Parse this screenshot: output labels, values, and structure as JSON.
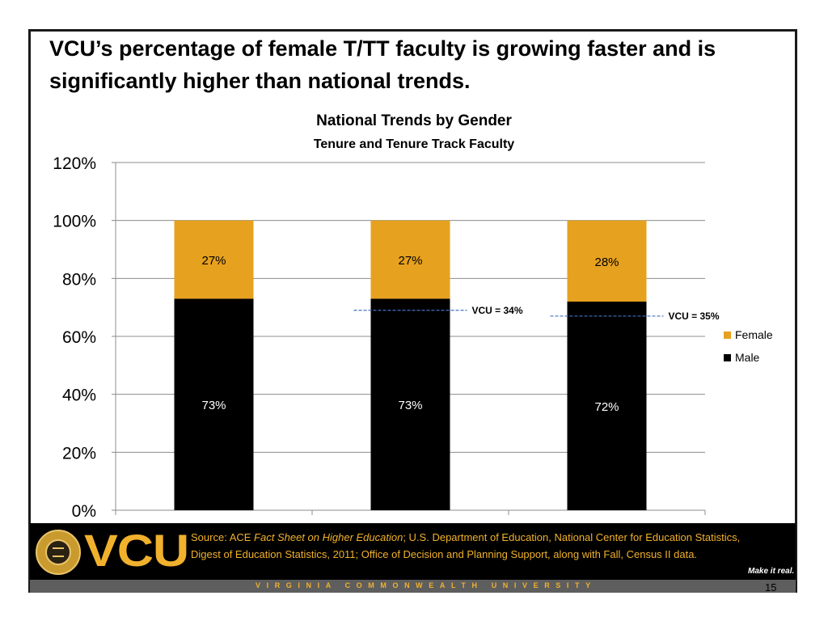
{
  "slide": {
    "headline": "VCU’s percentage of female T/TT faculty is growing faster and is significantly higher than national trends.",
    "page_number": "15"
  },
  "footer": {
    "logo": "VCU",
    "source_prefix": "Source: ACE ",
    "source_italic": "Fact Sheet on Higher Education",
    "source_rest": "; U.S. Department of Education, National Center for Education Statistics, Digest of Education Statistics, 2011; Office of Decision and Planning Support, along with Fall, Census II data.",
    "tagline": "Make it real.",
    "university_name": "VIRGINIA COMMONWEALTH UNIVERSITY"
  },
  "colors": {
    "female": "#E6A11F",
    "male": "#000000",
    "vcu_line": "#4472C4",
    "brand_gold": "#F1B12C"
  },
  "chart_data": {
    "type": "bar",
    "stacked": true,
    "title": "National Trends by Gender",
    "subtitle": "Tenure and Tenure Track Faculty",
    "categories": [
      "",
      "",
      ""
    ],
    "series": [
      {
        "name": "Male",
        "values": [
          73,
          73,
          72
        ],
        "labels": [
          "73%",
          "73%",
          "72%"
        ]
      },
      {
        "name": "Female",
        "values": [
          27,
          27,
          28
        ],
        "labels": [
          "27%",
          "27%",
          "28%"
        ]
      }
    ],
    "ylim": [
      0,
      120
    ],
    "yticks": [
      "0%",
      "20%",
      "40%",
      "60%",
      "80%",
      "100%",
      "120%"
    ],
    "grid": true,
    "legend": "right",
    "legend_items": [
      {
        "name": "Female",
        "color": "#E6A11F"
      },
      {
        "name": "Male",
        "color": "#000000"
      }
    ],
    "annotations": [
      {
        "text": "VCU = 34%",
        "value": 69,
        "category_index": 1
      },
      {
        "text": "VCU = 35%",
        "value": 67,
        "category_index": 2
      }
    ]
  }
}
